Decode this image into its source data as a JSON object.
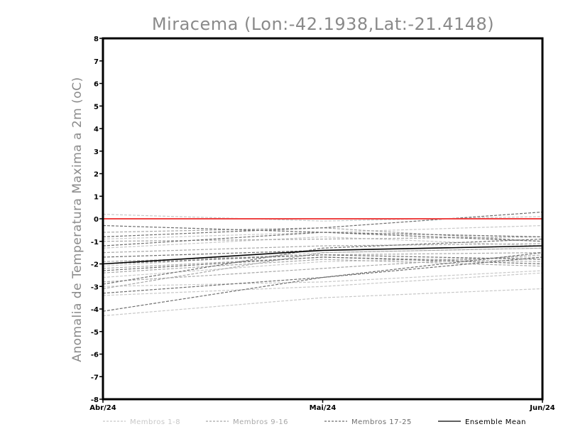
{
  "chart_data": {
    "type": "line",
    "title": "Miracema (Lon:-42.1938,Lat:-21.4148)",
    "xlabel": "",
    "ylabel": "Anomalia de Temperatura Maxima a 2m (oC)",
    "categories": [
      "Abr/24",
      "Mai/24",
      "Jun/24"
    ],
    "ylim": [
      -8,
      8
    ],
    "yticks": [
      "8",
      "7",
      "6",
      "5",
      "4",
      "3",
      "2",
      "1",
      "0",
      "-1",
      "-2",
      "-3",
      "-4",
      "-5",
      "-6",
      "-7",
      "-8"
    ],
    "zero_line_color": "#ee4444",
    "groups": [
      {
        "name": "Membros 1-8",
        "color": "#c8c8c8",
        "members": [
          [
            0.2,
            -0.1,
            0.1
          ],
          [
            -0.9,
            -0.6,
            -0.3
          ],
          [
            -1.3,
            -0.8,
            -1.2
          ],
          [
            -2.1,
            -1.5,
            -1.3
          ],
          [
            -2.6,
            -1.9,
            -1.7
          ],
          [
            -3.0,
            -2.8,
            -2.3
          ],
          [
            -3.4,
            -3.0,
            -2.4
          ],
          [
            -4.3,
            -3.5,
            -3.1
          ]
        ]
      },
      {
        "name": "Membros 9-16",
        "color": "#a8a8a8",
        "members": [
          [
            -0.6,
            -0.4,
            -1.0
          ],
          [
            -1.0,
            -0.9,
            -0.8
          ],
          [
            -1.5,
            -1.2,
            -1.1
          ],
          [
            -1.9,
            -1.6,
            -1.5
          ],
          [
            -2.2,
            -1.7,
            -1.9
          ],
          [
            -2.4,
            -1.8,
            -2.1
          ],
          [
            -2.8,
            -2.2,
            -1.6
          ],
          [
            -3.1,
            -1.5,
            -1.3
          ]
        ]
      },
      {
        "name": "Membros 17-25",
        "color": "#6e6e6e",
        "members": [
          [
            -0.3,
            -0.6,
            -1.0
          ],
          [
            -0.8,
            -0.4,
            0.3
          ],
          [
            -1.2,
            -0.6,
            -0.8
          ],
          [
            -1.7,
            -1.4,
            -1.2
          ],
          [
            -2.0,
            -1.6,
            -1.8
          ],
          [
            -2.3,
            -1.7,
            -2.0
          ],
          [
            -2.9,
            -1.3,
            -0.9
          ],
          [
            -3.3,
            -2.6,
            -1.7
          ],
          [
            -4.1,
            -2.6,
            -1.5
          ]
        ]
      }
    ],
    "series": [
      {
        "name": "Ensemble Mean",
        "color": "#000000",
        "values": [
          -2.0,
          -1.4,
          -1.2
        ]
      }
    ],
    "legend": [
      {
        "label": "Membros 1-8",
        "color": "#c8c8c8",
        "style": "dashed"
      },
      {
        "label": "Membros 9-16",
        "color": "#a8a8a8",
        "style": "dashed"
      },
      {
        "label": "Membros 17-25",
        "color": "#6e6e6e",
        "style": "dashed"
      },
      {
        "label": "Ensemble Mean",
        "color": "#000000",
        "style": "solid"
      }
    ]
  }
}
